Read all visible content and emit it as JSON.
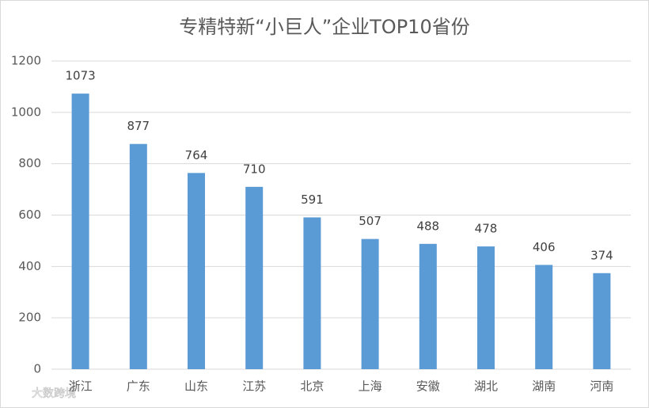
{
  "chart_data": {
    "type": "bar",
    "title": "专精特新“小巨人”企业TOP10省份",
    "categories": [
      "浙江",
      "广东",
      "山东",
      "江苏",
      "北京",
      "上海",
      "安徽",
      "湖北",
      "湖南",
      "河南"
    ],
    "values": [
      1073,
      877,
      764,
      710,
      591,
      507,
      488,
      478,
      406,
      374
    ],
    "color": "#5b9bd5",
    "ylim": [
      0,
      1200
    ],
    "yticks": [
      0,
      200,
      400,
      600,
      800,
      1000,
      1200
    ],
    "grid": true
  },
  "watermark": "大数跨境"
}
